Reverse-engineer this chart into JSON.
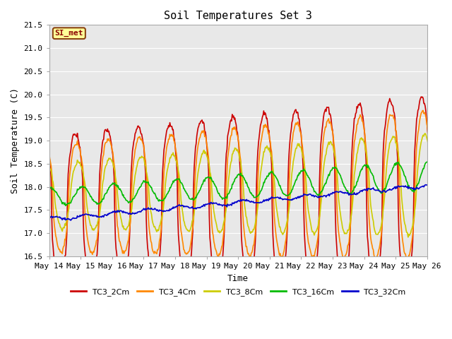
{
  "title": "Soil Temperatures Set 3",
  "ylabel": "Soil Temperature (C)",
  "xlabel": "Time",
  "ylim": [
    16.5,
    21.5
  ],
  "xlim_days": [
    0,
    12
  ],
  "background_color": "#e8e8e8",
  "annotation_text": "SI_met",
  "annotation_bg": "#ffff99",
  "annotation_border": "#8B4513",
  "series": {
    "TC3_2Cm": {
      "color": "#cc0000",
      "linewidth": 1.2
    },
    "TC3_4Cm": {
      "color": "#ff8800",
      "linewidth": 1.2
    },
    "TC3_8Cm": {
      "color": "#cccc00",
      "linewidth": 1.2
    },
    "TC3_16Cm": {
      "color": "#00bb00",
      "linewidth": 1.2
    },
    "TC3_32Cm": {
      "color": "#0000cc",
      "linewidth": 1.2
    }
  },
  "xtick_labels": [
    "May 14",
    "May 15",
    "May 16",
    "May 17",
    "May 18",
    "May 19",
    "May 20",
    "May 21",
    "May 22",
    "May 23",
    "May 24",
    "May 25",
    "May 26"
  ],
  "ytick_labels": [
    "16.5",
    "17.0",
    "17.5",
    "18.0",
    "18.5",
    "19.0",
    "19.5",
    "20.0",
    "20.5",
    "21.0",
    "21.5"
  ],
  "ytick_values": [
    16.5,
    17.0,
    17.5,
    18.0,
    18.5,
    19.0,
    19.5,
    20.0,
    20.5,
    21.0,
    21.5
  ],
  "font_family": "monospace"
}
